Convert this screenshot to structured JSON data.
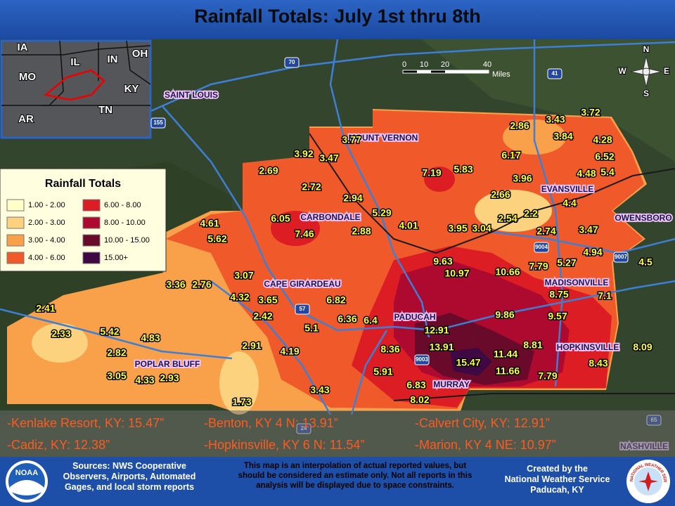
{
  "title": "Rainfall Totals: July 1st thru 8th",
  "legend": {
    "title": "Rainfall Totals",
    "items": [
      {
        "label": "1.00 - 2.00",
        "color": "#ffffc8"
      },
      {
        "label": "2.00 - 3.00",
        "color": "#fcd27e"
      },
      {
        "label": "3.00 - 4.00",
        "color": "#f8a04a"
      },
      {
        "label": "4.00 - 6.00",
        "color": "#f05a2a"
      },
      {
        "label": "6.00 - 8.00",
        "color": "#dc1e24"
      },
      {
        "label": "8.00 - 10.00",
        "color": "#ae0a30"
      },
      {
        "label": "10.00 - 15.00",
        "color": "#6a0a2a"
      },
      {
        "label": "15.00+",
        "color": "#3e0842"
      }
    ]
  },
  "inset": {
    "states": [
      "IA",
      "IL",
      "IN",
      "OH",
      "MO",
      "KY",
      "AR",
      "TN"
    ]
  },
  "scale": {
    "ticks": [
      "0",
      "10",
      "20",
      "40"
    ],
    "unit": "Miles"
  },
  "compass": [
    "N",
    "E",
    "S",
    "W"
  ],
  "highways": [
    "70",
    "41",
    "155",
    "57",
    "9003",
    "9004",
    "9007",
    "65",
    "24"
  ],
  "cities": [
    "SAINT LOUIS",
    "MOUNT VERNON",
    "CARBONDALE",
    "CAPE GIRARDEAU",
    "POPLAR BLUFF",
    "PADUCAH",
    "MURRAY",
    "HOPKINSVILLE",
    "MADISONVILLE",
    "EVANSVILLE",
    "OWENSBORO",
    "NASHVILLE"
  ],
  "rainfall": [
    "3.77",
    "3.92",
    "3.47",
    "2.69",
    "2.72",
    "2.94",
    "6.05",
    "7.46",
    "2.88",
    "5.29",
    "4.01",
    "4.61",
    "5.62",
    "3.07",
    "3.36",
    "2.76",
    "4.32",
    "3.65",
    "2.42",
    "6.82",
    "6.36",
    "6.4",
    "5.1",
    "2.41",
    "2.33",
    "5.42",
    "4.83",
    "2.82",
    "3.05",
    "4.33",
    "2.93",
    "2.91",
    "4.19",
    "8.36",
    "5.91",
    "3.43",
    "1.73",
    "12.91",
    "13.91",
    "6.83",
    "8.02",
    "15.47",
    "11.44",
    "11.66",
    "8.81",
    "7.79",
    "8.43",
    "8.09",
    "9.86",
    "9.57",
    "8.75",
    "7.1",
    "9.63",
    "10.97",
    "10.66",
    "7.79",
    "5.27",
    "4.94",
    "4.5",
    "3.47",
    "2.74",
    "2.2",
    "2.54",
    "3.04",
    "3.95",
    "2.66",
    "3.96",
    "4.4",
    "4.48",
    "5.4",
    "6.52",
    "4.28",
    "3.84",
    "3.43",
    "3.72",
    "2.86",
    "6.17",
    "7.19",
    "5.83"
  ],
  "highlights": [
    "-Kenlake Resort, KY: 15.47”",
    "-Benton, KY 4 N: 13.91”",
    "-Calvert City, KY: 12.91”",
    "-Cadiz, KY: 12.38”",
    "-Hopkinsville, KY 6 N: 11.54”",
    "-Marion, KY 4 NE: 10.97”"
  ],
  "footer": {
    "sources": "Sources: NWS Cooperative Observers, Airports, Automated Gages, and local storm reports",
    "disclaimer": "This map is an interpolation of actual reported values, but should be considered an estimate only. Not all reports in this analysis will be displayed due to space constraints.",
    "credit": [
      "Created by the",
      "National Weather Service",
      "Paducah, KY"
    ]
  },
  "logos": {
    "noaa": "NOAA",
    "nws": "NATIONAL WEATHER SERVICE"
  }
}
